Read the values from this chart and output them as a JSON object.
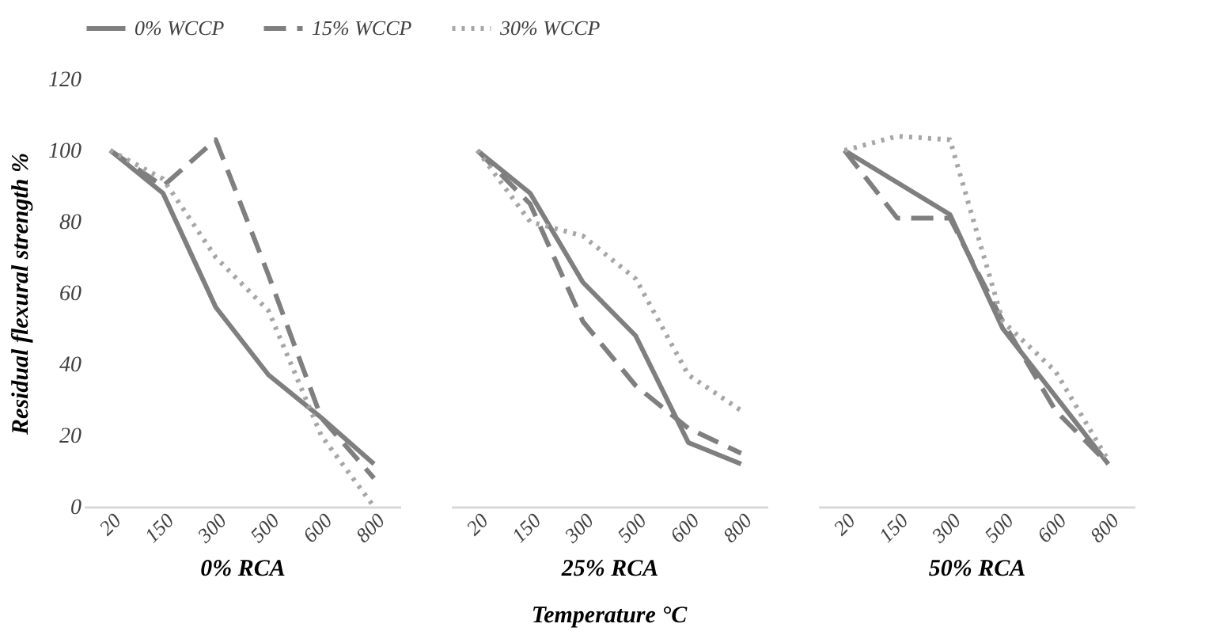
{
  "chart_data": [
    {
      "type": "line",
      "xlabel": "0% RCA",
      "ylabel": "Residual flexural strength %",
      "categories": [
        "20",
        "150",
        "300",
        "500",
        "600",
        "800"
      ],
      "ylim": [
        0,
        120
      ],
      "yticks": [
        0,
        20,
        40,
        60,
        80,
        100,
        120
      ],
      "legend": "top",
      "series": [
        {
          "name": "0% WCCP",
          "color": "#7f7f7f",
          "line_style": "solid",
          "values": [
            100,
            88,
            56,
            37,
            25,
            12
          ]
        },
        {
          "name": "15% WCCP",
          "color": "#7f7f7f",
          "line_style": "dashed",
          "values": [
            100,
            90,
            103,
            65,
            25,
            8
          ]
        },
        {
          "name": "30% WCCP",
          "color": "#a6a6a6",
          "line_style": "dotted",
          "values": [
            100,
            92,
            70,
            55,
            20,
            0
          ]
        }
      ]
    },
    {
      "type": "line",
      "xlabel": "25% RCA",
      "categories": [
        "20",
        "150",
        "300",
        "500",
        "600",
        "800"
      ],
      "ylim": [
        0,
        120
      ],
      "tick_labels": "x",
      "annotations": [
        "Temperature °C"
      ],
      "series": [
        {
          "color": "#7f7f7f",
          "line_style": "solid",
          "values": [
            100,
            88,
            63,
            48,
            18,
            12
          ]
        },
        {
          "color": "#7f7f7f",
          "line_style": "dashed",
          "values": [
            100,
            85,
            52,
            34,
            22,
            15
          ]
        },
        {
          "color": "#a6a6a6",
          "line_style": "dotted",
          "values": [
            100,
            80,
            76,
            64,
            37,
            27
          ]
        }
      ]
    },
    {
      "type": "line",
      "xlabel": "50% RCA",
      "categories": [
        "20",
        "150",
        "300",
        "500",
        "600",
        "800"
      ],
      "ylim": [
        0,
        120
      ],
      "tick_labels": "x",
      "series": [
        {
          "color": "#7f7f7f",
          "line_style": "solid",
          "values": [
            100,
            91,
            82,
            50,
            31,
            12
          ]
        },
        {
          "color": "#7f7f7f",
          "line_style": "dashed",
          "values": [
            100,
            81,
            81,
            52,
            27,
            12
          ]
        },
        {
          "color": "#a6a6a6",
          "line_style": "dotted",
          "values": [
            100,
            104,
            103,
            52,
            38,
            13
          ]
        }
      ]
    }
  ]
}
